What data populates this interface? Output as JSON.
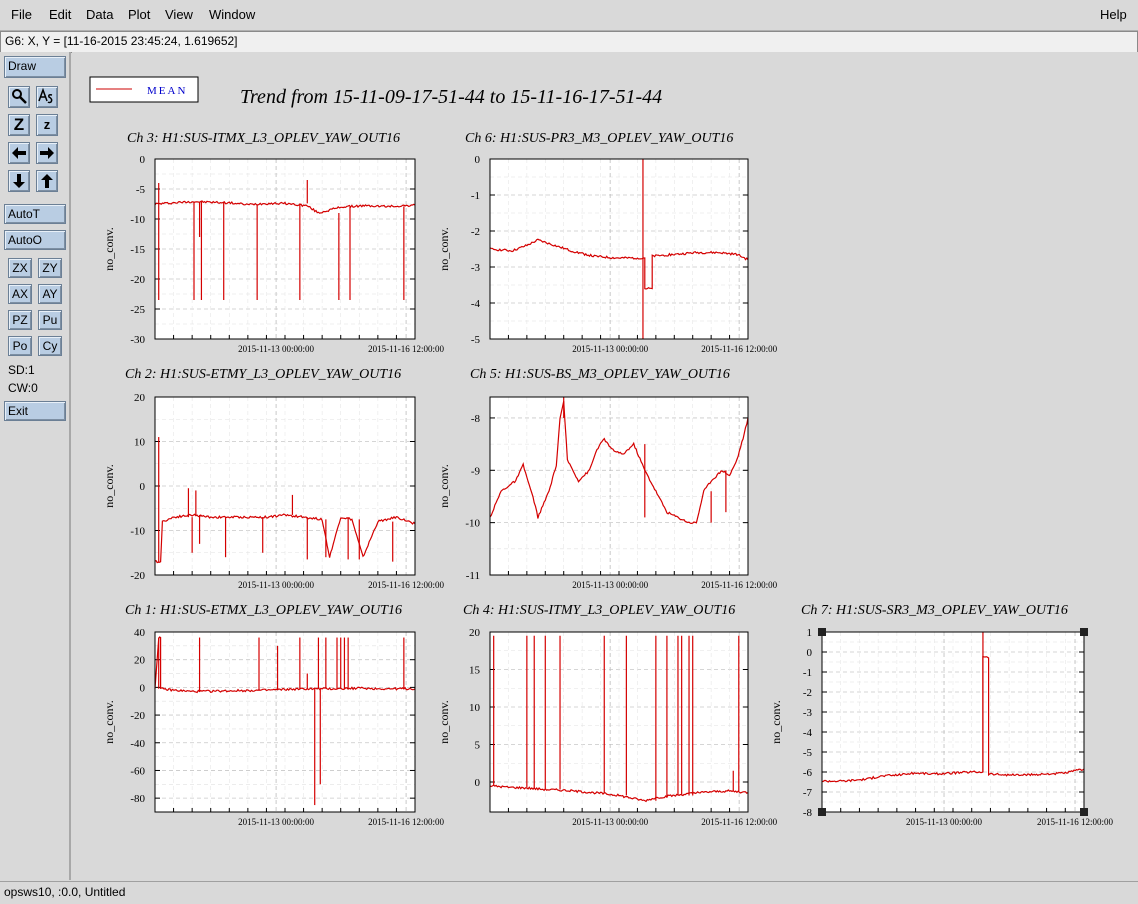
{
  "menu": {
    "file": "File",
    "edit": "Edit",
    "data": "Data",
    "plot": "Plot",
    "view": "View",
    "window": "Window",
    "help": "Help"
  },
  "coord_readout": "G6: X, Y = [11-16-2015 23:45:24, 1.619652]",
  "tools": {
    "draw": "Draw",
    "autot": "AutoT",
    "autoo": "AutoO",
    "zx": "ZX",
    "zy": "ZY",
    "ax": "AX",
    "ay": "AY",
    "pz": "PZ",
    "pu": "Pu",
    "po": "Po",
    "cy": "Cy",
    "sd": "SD:1",
    "cw": "CW:0",
    "exit": "Exit",
    "zoom_big": "Z",
    "zoom_small": "z"
  },
  "status": "opsws10, :0.0, Untitled",
  "legend": {
    "label": "MEAN",
    "color": "#cc0000"
  },
  "main_title": "Trend from 15-11-09-17-51-44 to 15-11-16-17-51-44",
  "line_color": "#d40000",
  "chart_data": [
    {
      "type": "line",
      "title": "Ch 3: H1:SUS-ITMX_L3_OPLEV_YAW_OUT16",
      "ylabel": "no_conv.",
      "yticks": [
        0,
        -5,
        -10,
        -15,
        -20,
        -25,
        -30
      ],
      "ylim": [
        -30,
        0
      ],
      "xticks": [
        "2015-11-13 00:00:00",
        "2015-11-16 12:00:00"
      ],
      "xlim": [
        0,
        7
      ],
      "xtick_pos": [
        3.26,
        6.76
      ],
      "baseline": [
        [
          0,
          -7.5
        ],
        [
          0.5,
          -7.3
        ],
        [
          1,
          -7.1
        ],
        [
          1.5,
          -7.2
        ],
        [
          2,
          -7.3
        ],
        [
          2.5,
          -7.6
        ],
        [
          3,
          -7.4
        ],
        [
          3.5,
          -7.4
        ],
        [
          4.1,
          -7.8
        ],
        [
          4.4,
          -9.0
        ],
        [
          5.0,
          -8.0
        ],
        [
          5.6,
          -7.8
        ],
        [
          6.3,
          -7.9
        ],
        [
          7,
          -7.7
        ]
      ],
      "spikes": [
        [
          0.1,
          -23.5
        ],
        [
          0.1,
          -4
        ],
        [
          1.05,
          -23.5
        ],
        [
          1.25,
          -23.5
        ],
        [
          1.2,
          -13
        ],
        [
          1.85,
          -23.5
        ],
        [
          2.75,
          -23.5
        ],
        [
          3.9,
          -23.5
        ],
        [
          4.1,
          -3.5
        ],
        [
          4.95,
          -23.5
        ],
        [
          5.25,
          -23.5
        ],
        [
          6.7,
          -23.5
        ]
      ]
    },
    {
      "type": "line",
      "title": "Ch 6: H1:SUS-PR3_M3_OPLEV_YAW_OUT16",
      "ylabel": "no_conv.",
      "yticks": [
        0,
        -1,
        -2,
        -3,
        -4,
        -5
      ],
      "ylim": [
        -5,
        0
      ],
      "xticks": [
        "2015-11-13 00:00:00",
        "2015-11-16 12:00:00"
      ],
      "xlim": [
        0,
        7
      ],
      "xtick_pos": [
        3.26,
        6.76
      ],
      "baseline": [
        [
          0,
          -2.5
        ],
        [
          0.6,
          -2.55
        ],
        [
          1.0,
          -2.4
        ],
        [
          1.3,
          -2.25
        ],
        [
          1.6,
          -2.35
        ],
        [
          2.2,
          -2.55
        ],
        [
          2.8,
          -2.7
        ],
        [
          3.4,
          -2.75
        ],
        [
          4.2,
          -2.75
        ],
        [
          4.2,
          -3.6
        ],
        [
          4.4,
          -3.6
        ],
        [
          4.4,
          -2.7
        ],
        [
          5.0,
          -2.65
        ],
        [
          5.6,
          -2.6
        ],
        [
          6.2,
          -2.6
        ],
        [
          6.7,
          -2.65
        ],
        [
          7,
          -2.8
        ]
      ],
      "spikes": [
        [
          4.15,
          0
        ],
        [
          4.15,
          -5
        ]
      ]
    },
    {
      "type": "line",
      "title": "Ch 2: H1:SUS-ETMY_L3_OPLEV_YAW_OUT16",
      "ylabel": "no_conv.",
      "yticks": [
        20,
        10,
        0,
        -10,
        -20
      ],
      "ylim": [
        -20,
        20
      ],
      "xticks": [
        "2015-11-13 00:00:00",
        "2015-11-16 12:00:00"
      ],
      "xlim": [
        0,
        7
      ],
      "xtick_pos": [
        3.26,
        6.76
      ],
      "baseline": [
        [
          0,
          -17
        ],
        [
          0.15,
          -17
        ],
        [
          0.2,
          -8
        ],
        [
          0.5,
          -7
        ],
        [
          1.0,
          -6.5
        ],
        [
          1.5,
          -7
        ],
        [
          2.5,
          -7
        ],
        [
          3.0,
          -7
        ],
        [
          3.5,
          -6.5
        ],
        [
          4.0,
          -7
        ],
        [
          4.5,
          -7.5
        ],
        [
          4.7,
          -16
        ],
        [
          5.0,
          -7
        ],
        [
          5.3,
          -7.5
        ],
        [
          5.6,
          -16
        ],
        [
          6.0,
          -8
        ],
        [
          6.5,
          -7
        ],
        [
          7,
          -8.5
        ]
      ],
      "spikes": [
        [
          0.1,
          11
        ],
        [
          0.1,
          -17
        ],
        [
          0.9,
          -0.5
        ],
        [
          1.0,
          -15
        ],
        [
          1.1,
          -1
        ],
        [
          1.2,
          -13
        ],
        [
          1.9,
          -16
        ],
        [
          2.9,
          -15
        ],
        [
          3.7,
          -2
        ],
        [
          4.1,
          -16.5
        ],
        [
          4.6,
          -16
        ],
        [
          5.2,
          -16.5
        ],
        [
          5.5,
          -16.5
        ],
        [
          6.4,
          -17
        ]
      ]
    },
    {
      "type": "line",
      "title": "Ch 5: H1:SUS-BS_M3_OPLEV_YAW_OUT16",
      "ylabel": "no_conv.",
      "yticks": [
        -8,
        -9,
        -10,
        -11
      ],
      "ylim": [
        -11,
        -7.6
      ],
      "xticks": [
        "2015-11-13 00:00:00",
        "2015-11-16 12:00:00"
      ],
      "xlim": [
        0,
        7
      ],
      "xtick_pos": [
        3.26,
        6.76
      ],
      "baseline": [
        [
          0,
          -9.9
        ],
        [
          0.3,
          -9.4
        ],
        [
          0.7,
          -9.2
        ],
        [
          0.9,
          -8.9
        ],
        [
          1.2,
          -9.6
        ],
        [
          1.3,
          -9.9
        ],
        [
          1.6,
          -9.4
        ],
        [
          1.8,
          -8.9
        ],
        [
          1.9,
          -8.0
        ],
        [
          2.0,
          -7.7
        ],
        [
          2.1,
          -8.8
        ],
        [
          2.4,
          -9.2
        ],
        [
          2.7,
          -9.0
        ],
        [
          2.9,
          -8.6
        ],
        [
          3.1,
          -8.4
        ],
        [
          3.3,
          -8.6
        ],
        [
          3.6,
          -8.7
        ],
        [
          3.9,
          -8.5
        ],
        [
          4.2,
          -9.0
        ],
        [
          4.5,
          -9.4
        ],
        [
          4.8,
          -9.8
        ],
        [
          5.1,
          -9.9
        ],
        [
          5.4,
          -10.0
        ],
        [
          5.6,
          -10.0
        ],
        [
          5.8,
          -9.4
        ],
        [
          6.0,
          -9.2
        ],
        [
          6.3,
          -9.0
        ],
        [
          6.5,
          -9.1
        ],
        [
          6.7,
          -8.8
        ],
        [
          6.9,
          -8.3
        ],
        [
          7,
          -8.0
        ]
      ],
      "spikes": [
        [
          2.0,
          -7.6
        ],
        [
          4.2,
          -9.9
        ],
        [
          6.0,
          -10.0
        ],
        [
          6.4,
          -9.8
        ]
      ]
    },
    {
      "type": "line",
      "title": "Ch 1: H1:SUS-ETMX_L3_OPLEV_YAW_OUT16",
      "ylabel": "no_conv.",
      "yticks": [
        40,
        20,
        0,
        -20,
        -40,
        -60,
        -80
      ],
      "ylim": [
        -90,
        40
      ],
      "xticks": [
        "2015-11-13 00:00:00",
        "2015-11-16 12:00:00"
      ],
      "xlim": [
        0,
        7
      ],
      "xtick_pos": [
        3.26,
        6.76
      ],
      "baseline": [
        [
          0,
          -1
        ],
        [
          0.1,
          36
        ],
        [
          0.15,
          36
        ],
        [
          0.15,
          -1
        ],
        [
          0.5,
          -2
        ],
        [
          1.0,
          -3
        ],
        [
          2.0,
          -2.5
        ],
        [
          3.0,
          -2
        ],
        [
          3.5,
          -1.5
        ],
        [
          4.2,
          -1
        ],
        [
          4.5,
          -1
        ],
        [
          5.0,
          -1
        ],
        [
          5.5,
          -0.5
        ],
        [
          6.0,
          -1
        ],
        [
          7,
          -1
        ]
      ],
      "spikes": [
        [
          0.1,
          36
        ],
        [
          1.2,
          36
        ],
        [
          2.8,
          36
        ],
        [
          3.3,
          30
        ],
        [
          3.9,
          36
        ],
        [
          4.1,
          10
        ],
        [
          4.3,
          -85
        ],
        [
          4.45,
          -70
        ],
        [
          4.6,
          36
        ],
        [
          5.1,
          36
        ],
        [
          5.2,
          36
        ],
        [
          6.7,
          36
        ],
        [
          4.0,
          -1
        ],
        [
          4.4,
          36
        ],
        [
          4.9,
          36
        ],
        [
          5.0,
          36
        ]
      ]
    },
    {
      "type": "line",
      "title": "Ch 4: H1:SUS-ITMY_L3_OPLEV_YAW_OUT16",
      "ylabel": "no_conv.",
      "yticks": [
        20,
        15,
        10,
        5,
        0
      ],
      "ylim": [
        -4,
        20
      ],
      "xticks": [
        "2015-11-13 00:00:00",
        "2015-11-16 12:00:00"
      ],
      "xlim": [
        0,
        7
      ],
      "xtick_pos": [
        3.26,
        6.76
      ],
      "baseline": [
        [
          0,
          -0.5
        ],
        [
          0.5,
          -0.7
        ],
        [
          1.0,
          -0.8
        ],
        [
          1.5,
          -1.0
        ],
        [
          2.0,
          -1.1
        ],
        [
          2.5,
          -1.3
        ],
        [
          3.0,
          -1.5
        ],
        [
          3.5,
          -1.8
        ],
        [
          4.0,
          -2.3
        ],
        [
          4.2,
          -2.5
        ],
        [
          4.5,
          -2.1
        ],
        [
          5.0,
          -1.8
        ],
        [
          5.5,
          -1.5
        ],
        [
          6.0,
          -1.3
        ],
        [
          6.5,
          -1.2
        ],
        [
          7,
          -1.4
        ]
      ],
      "spikes": [
        [
          0.1,
          19.5
        ],
        [
          1.0,
          19.5
        ],
        [
          1.2,
          19.5
        ],
        [
          1.5,
          19.5
        ],
        [
          1.9,
          19.5
        ],
        [
          3.1,
          19.5
        ],
        [
          3.7,
          19.5
        ],
        [
          4.5,
          19.5
        ],
        [
          4.8,
          19.5
        ],
        [
          5.1,
          19.5
        ],
        [
          5.2,
          19.5
        ],
        [
          5.4,
          19.5
        ],
        [
          5.5,
          19.5
        ],
        [
          6.6,
          1.5
        ],
        [
          6.75,
          19.5
        ]
      ]
    },
    {
      "type": "line",
      "title": "Ch 7: H1:SUS-SR3_M3_OPLEV_YAW_OUT16",
      "ylabel": "no_conv.",
      "yticks": [
        1,
        0,
        -1,
        -2,
        -3,
        -4,
        -5,
        -6,
        -7,
        -8
      ],
      "ylim": [
        -8,
        1
      ],
      "xticks": [
        "2015-11-13 00:00:00",
        "2015-11-16 12:00:00"
      ],
      "xlim": [
        0,
        7
      ],
      "xtick_pos": [
        3.26,
        6.76
      ],
      "baseline": [
        [
          0,
          -6.45
        ],
        [
          0.6,
          -6.45
        ],
        [
          1.2,
          -6.35
        ],
        [
          1.6,
          -6.2
        ],
        [
          2.0,
          -6.15
        ],
        [
          2.5,
          -6.05
        ],
        [
          3.0,
          -6.1
        ],
        [
          3.5,
          -6.05
        ],
        [
          4.0,
          -6.0
        ],
        [
          4.3,
          -6.0
        ],
        [
          4.3,
          -0.2
        ],
        [
          4.45,
          -0.3
        ],
        [
          4.45,
          -6.1
        ],
        [
          5.0,
          -6.15
        ],
        [
          5.5,
          -6.15
        ],
        [
          6.0,
          -6.1
        ],
        [
          6.5,
          -6.05
        ],
        [
          7,
          -5.85
        ]
      ],
      "spikes": [
        [
          4.3,
          1
        ]
      ]
    }
  ]
}
